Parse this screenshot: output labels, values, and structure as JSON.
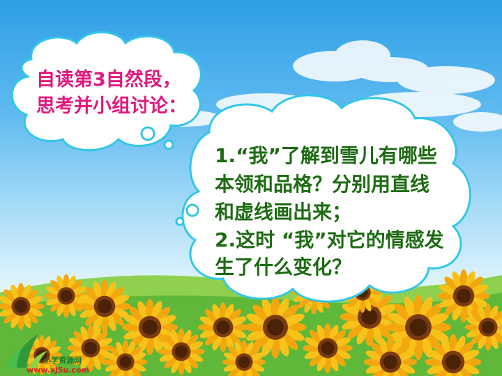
{
  "slide": {
    "bubble1": {
      "line1": "自读第3自然段，",
      "line2": "思考并小组讨论："
    },
    "bubble2": {
      "line1": "1.“我”了解到雪儿有哪些",
      "line2": "本领和品格？分别用直线",
      "line3": "和虚线画出来；",
      "line4": "2.这时 “我”对它的情感发",
      "line5": "生了什么变化？"
    }
  },
  "logo": {
    "name": "小学资源网",
    "url": "www.xj5u.com"
  },
  "colors": {
    "sky_top": "#2e9fe6",
    "question1_text": "#e0197d",
    "question2_text": "#1d6b12",
    "bubble_outline": "#33c6e6"
  }
}
